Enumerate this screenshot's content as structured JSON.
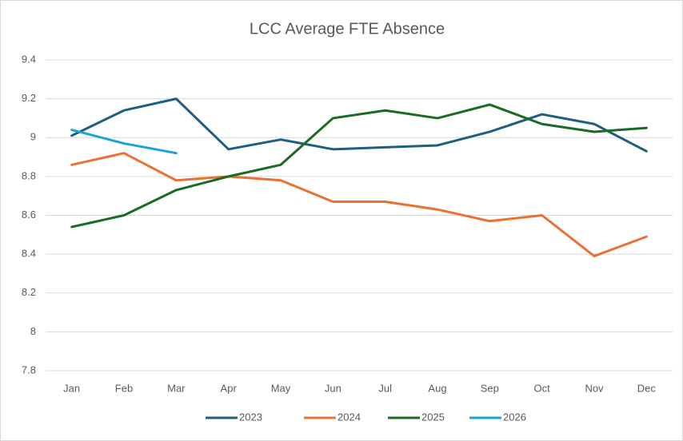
{
  "chart_data": {
    "type": "line",
    "title": "LCC Average FTE Absence",
    "categories": [
      "Jan",
      "Feb",
      "Mar",
      "Apr",
      "May",
      "Jun",
      "Jul",
      "Aug",
      "Sep",
      "Oct",
      "Nov",
      "Dec"
    ],
    "series": [
      {
        "name": "2023",
        "color": "#1e5e80",
        "values": [
          9.01,
          9.14,
          9.2,
          8.94,
          8.99,
          8.94,
          8.95,
          8.96,
          9.03,
          9.12,
          9.07,
          8.93
        ]
      },
      {
        "name": "2024",
        "color": "#e97132",
        "values": [
          8.86,
          8.92,
          8.78,
          8.8,
          8.78,
          8.67,
          8.67,
          8.63,
          8.57,
          8.6,
          8.39,
          8.49
        ]
      },
      {
        "name": "2025",
        "color": "#196b24",
        "values": [
          8.54,
          8.6,
          8.73,
          8.8,
          8.86,
          9.1,
          9.14,
          9.1,
          9.17,
          9.07,
          9.03,
          9.05
        ]
      },
      {
        "name": "2026",
        "color": "#1aa3d8",
        "values": [
          9.04,
          8.97,
          8.92,
          null,
          null,
          null,
          null,
          null,
          null,
          null,
          null,
          null
        ]
      }
    ],
    "ylim": [
      7.8,
      9.4
    ],
    "yticks": [
      7.8,
      8,
      8.2,
      8.4,
      8.6,
      8.8,
      9,
      9.2,
      9.4
    ],
    "grid": true,
    "legend": "bottom"
  }
}
